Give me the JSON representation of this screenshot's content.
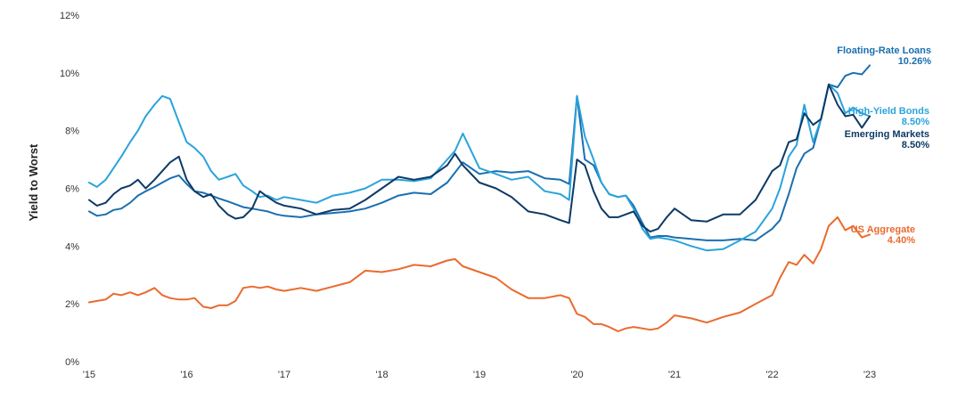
{
  "chart_data": {
    "type": "line",
    "title": "",
    "xlabel": "",
    "ylabel": "Yield to Worst",
    "xlim": [
      2015,
      2023
    ],
    "ylim": [
      0,
      12
    ],
    "yticks": [
      0,
      2,
      4,
      6,
      8,
      10,
      12
    ],
    "ytick_labels": [
      "0%",
      "2%",
      "4%",
      "6%",
      "8%",
      "10%",
      "12%"
    ],
    "xticks": [
      2015,
      2016,
      2017,
      2018,
      2019,
      2020,
      2021,
      2022,
      2023
    ],
    "xtick_labels": [
      "'15",
      "'16",
      "'17",
      "'18",
      "'19",
      "'20",
      "'21",
      "'22",
      "'23"
    ],
    "grid": false,
    "series": [
      {
        "name": "Floating-Rate Loans",
        "end_label": "10.26%",
        "color": "#1a6fb0",
        "x": [
          2015.0,
          2015.08,
          2015.17,
          2015.25,
          2015.33,
          2015.42,
          2015.5,
          2015.58,
          2015.67,
          2015.75,
          2015.83,
          2015.92,
          2016.0,
          2016.08,
          2016.17,
          2016.25,
          2016.33,
          2016.42,
          2016.5,
          2016.58,
          2016.67,
          2016.75,
          2016.83,
          2016.92,
          2017.0,
          2017.17,
          2017.33,
          2017.5,
          2017.67,
          2017.83,
          2018.0,
          2018.17,
          2018.33,
          2018.5,
          2018.67,
          2018.83,
          2019.0,
          2019.17,
          2019.33,
          2019.5,
          2019.67,
          2019.83,
          2019.92,
          2020.0,
          2020.08,
          2020.17,
          2020.25,
          2020.33,
          2020.42,
          2020.5,
          2020.58,
          2020.67,
          2020.75,
          2020.83,
          2020.92,
          2021.0,
          2021.17,
          2021.33,
          2021.5,
          2021.67,
          2021.83,
          2022.0,
          2022.08,
          2022.17,
          2022.25,
          2022.33,
          2022.42,
          2022.5,
          2022.58,
          2022.67,
          2022.75,
          2022.83,
          2022.92,
          2023.0
        ],
        "y": [
          5.2,
          5.05,
          5.1,
          5.25,
          5.3,
          5.5,
          5.75,
          5.9,
          6.05,
          6.2,
          6.35,
          6.45,
          6.15,
          5.9,
          5.85,
          5.75,
          5.65,
          5.55,
          5.45,
          5.35,
          5.3,
          5.25,
          5.2,
          5.1,
          5.05,
          5.0,
          5.1,
          5.15,
          5.2,
          5.3,
          5.5,
          5.75,
          5.85,
          5.8,
          6.2,
          6.9,
          6.5,
          6.6,
          6.55,
          6.6,
          6.35,
          6.3,
          6.15,
          9.2,
          7.0,
          6.8,
          6.2,
          5.8,
          5.7,
          5.75,
          5.4,
          4.8,
          4.3,
          4.35,
          4.35,
          4.3,
          4.25,
          4.2,
          4.2,
          4.25,
          4.2,
          4.6,
          4.9,
          5.8,
          6.7,
          7.2,
          7.4,
          8.4,
          9.6,
          9.5,
          9.9,
          10.0,
          9.95,
          10.26
        ]
      },
      {
        "name": "High-Yield Bonds",
        "end_label": "8.50%",
        "color": "#2aa3dc",
        "x": [
          2015.0,
          2015.08,
          2015.17,
          2015.25,
          2015.33,
          2015.42,
          2015.5,
          2015.58,
          2015.67,
          2015.75,
          2015.83,
          2015.92,
          2016.0,
          2016.08,
          2016.17,
          2016.25,
          2016.33,
          2016.42,
          2016.5,
          2016.58,
          2016.67,
          2016.75,
          2016.83,
          2016.92,
          2017.0,
          2017.17,
          2017.33,
          2017.5,
          2017.67,
          2017.83,
          2018.0,
          2018.17,
          2018.33,
          2018.5,
          2018.67,
          2018.75,
          2018.83,
          2019.0,
          2019.17,
          2019.33,
          2019.5,
          2019.67,
          2019.83,
          2019.92,
          2020.0,
          2020.08,
          2020.17,
          2020.25,
          2020.33,
          2020.42,
          2020.5,
          2020.58,
          2020.67,
          2020.75,
          2020.83,
          2020.92,
          2021.0,
          2021.17,
          2021.33,
          2021.5,
          2021.67,
          2021.83,
          2022.0,
          2022.08,
          2022.17,
          2022.25,
          2022.33,
          2022.42,
          2022.5,
          2022.58,
          2022.67,
          2022.75,
          2022.83,
          2022.92,
          2023.0
        ],
        "y": [
          6.2,
          6.05,
          6.3,
          6.7,
          7.1,
          7.6,
          8.0,
          8.5,
          8.9,
          9.2,
          9.1,
          8.3,
          7.6,
          7.4,
          7.1,
          6.6,
          6.3,
          6.4,
          6.5,
          6.1,
          5.9,
          5.7,
          5.75,
          5.6,
          5.7,
          5.6,
          5.5,
          5.75,
          5.85,
          6.0,
          6.3,
          6.3,
          6.25,
          6.35,
          7.0,
          7.3,
          7.9,
          6.7,
          6.5,
          6.3,
          6.4,
          5.9,
          5.8,
          5.6,
          9.2,
          7.8,
          7.0,
          6.2,
          5.8,
          5.7,
          5.75,
          5.3,
          4.6,
          4.25,
          4.3,
          4.25,
          4.2,
          4.0,
          3.85,
          3.9,
          4.2,
          4.5,
          5.3,
          6.0,
          7.1,
          7.5,
          8.9,
          7.6,
          8.4,
          9.6,
          9.3,
          8.6,
          8.8,
          8.6,
          8.5
        ]
      },
      {
        "name": "Emerging Markets",
        "end_label": "8.50%",
        "color": "#0d3a66",
        "x": [
          2015.0,
          2015.08,
          2015.17,
          2015.25,
          2015.33,
          2015.42,
          2015.5,
          2015.58,
          2015.67,
          2015.75,
          2015.83,
          2015.92,
          2016.0,
          2016.08,
          2016.17,
          2016.25,
          2016.33,
          2016.42,
          2016.5,
          2016.58,
          2016.67,
          2016.75,
          2016.83,
          2016.92,
          2017.0,
          2017.17,
          2017.33,
          2017.5,
          2017.67,
          2017.83,
          2018.0,
          2018.17,
          2018.33,
          2018.5,
          2018.67,
          2018.75,
          2018.83,
          2019.0,
          2019.17,
          2019.33,
          2019.5,
          2019.67,
          2019.83,
          2019.92,
          2020.0,
          2020.08,
          2020.17,
          2020.25,
          2020.33,
          2020.42,
          2020.5,
          2020.58,
          2020.67,
          2020.75,
          2020.83,
          2020.92,
          2021.0,
          2021.17,
          2021.33,
          2021.5,
          2021.67,
          2021.83,
          2022.0,
          2022.08,
          2022.17,
          2022.25,
          2022.33,
          2022.42,
          2022.5,
          2022.58,
          2022.67,
          2022.75,
          2022.83,
          2022.92,
          2023.0
        ],
        "y": [
          5.6,
          5.4,
          5.5,
          5.8,
          6.0,
          6.1,
          6.3,
          6.0,
          6.3,
          6.6,
          6.9,
          7.1,
          6.3,
          5.9,
          5.7,
          5.8,
          5.4,
          5.1,
          4.95,
          5.0,
          5.3,
          5.9,
          5.7,
          5.5,
          5.4,
          5.3,
          5.1,
          5.25,
          5.3,
          5.6,
          6.0,
          6.4,
          6.3,
          6.4,
          6.8,
          7.2,
          6.8,
          6.2,
          6.0,
          5.7,
          5.2,
          5.1,
          4.9,
          4.8,
          7.0,
          6.8,
          5.9,
          5.3,
          5.0,
          5.0,
          5.1,
          5.2,
          4.7,
          4.5,
          4.6,
          5.0,
          5.3,
          4.9,
          4.85,
          5.1,
          5.1,
          5.6,
          6.6,
          6.8,
          7.6,
          7.7,
          8.6,
          8.2,
          8.4,
          9.6,
          8.9,
          8.5,
          8.55,
          8.1,
          8.5
        ]
      },
      {
        "name": "US Aggregate",
        "end_label": "4.40%",
        "color": "#ea6a2e",
        "x": [
          2015.0,
          2015.08,
          2015.17,
          2015.25,
          2015.33,
          2015.42,
          2015.5,
          2015.58,
          2015.67,
          2015.75,
          2015.83,
          2015.92,
          2016.0,
          2016.08,
          2016.17,
          2016.25,
          2016.33,
          2016.42,
          2016.5,
          2016.58,
          2016.67,
          2016.75,
          2016.83,
          2016.92,
          2017.0,
          2017.17,
          2017.33,
          2017.5,
          2017.67,
          2017.83,
          2018.0,
          2018.17,
          2018.33,
          2018.5,
          2018.67,
          2018.75,
          2018.83,
          2019.0,
          2019.17,
          2019.33,
          2019.5,
          2019.67,
          2019.83,
          2019.92,
          2020.0,
          2020.08,
          2020.17,
          2020.25,
          2020.33,
          2020.42,
          2020.5,
          2020.58,
          2020.67,
          2020.75,
          2020.83,
          2020.92,
          2021.0,
          2021.17,
          2021.33,
          2021.5,
          2021.67,
          2021.83,
          2022.0,
          2022.08,
          2022.17,
          2022.25,
          2022.33,
          2022.42,
          2022.5,
          2022.58,
          2022.67,
          2022.75,
          2022.83,
          2022.92,
          2023.0
        ],
        "y": [
          2.05,
          2.1,
          2.15,
          2.35,
          2.3,
          2.4,
          2.3,
          2.4,
          2.55,
          2.3,
          2.2,
          2.15,
          2.15,
          2.2,
          1.9,
          1.85,
          1.95,
          1.95,
          2.1,
          2.55,
          2.6,
          2.55,
          2.6,
          2.5,
          2.45,
          2.55,
          2.45,
          2.6,
          2.75,
          3.15,
          3.1,
          3.2,
          3.35,
          3.3,
          3.5,
          3.55,
          3.3,
          3.1,
          2.9,
          2.5,
          2.2,
          2.2,
          2.3,
          2.2,
          1.65,
          1.55,
          1.3,
          1.3,
          1.2,
          1.05,
          1.15,
          1.2,
          1.15,
          1.1,
          1.15,
          1.35,
          1.6,
          1.5,
          1.35,
          1.55,
          1.7,
          2.0,
          2.3,
          2.9,
          3.45,
          3.35,
          3.7,
          3.4,
          3.9,
          4.7,
          5.0,
          4.55,
          4.7,
          4.3,
          4.4
        ]
      }
    ]
  }
}
